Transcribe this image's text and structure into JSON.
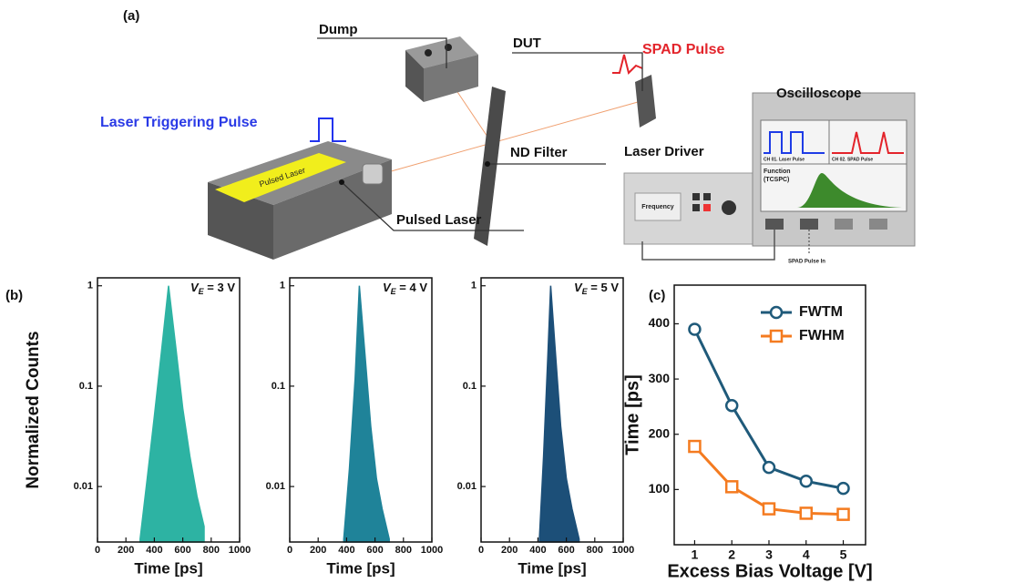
{
  "panels": {
    "a": "(a)",
    "b": "(b)",
    "c": "(c)"
  },
  "diagram": {
    "dump": "Dump",
    "dut": "DUT",
    "spad_pulse": "SPAD Pulse",
    "oscilloscope": "Oscilloscope",
    "laser_triggering_pulse": "Laser Triggering Pulse",
    "laser_box_label": "Pulsed Laser",
    "nd_filter": "ND Filter",
    "laser_driver": "Laser Driver",
    "pulsed_laser": "Pulsed Laser",
    "frequency": "Frequency",
    "ch1": "CH 01. Laser Pulse",
    "ch2": "CH 02. SPAD Pulse",
    "function": "Function",
    "tcspc": "(TCSPC)",
    "spad_pulse_in": "SPAD Pulse In"
  },
  "chart_data": [
    {
      "type": "line",
      "area": true,
      "log_y": true,
      "ylabel": "Normalized Counts",
      "xlabel": "Time [ps]",
      "annotation": [
        "V",
        "E",
        " = 3 V"
      ],
      "xlim": [
        0,
        1000
      ],
      "xticks": [
        0,
        200,
        400,
        600,
        800,
        1000
      ],
      "ylim": [
        0.0028,
        1.2
      ],
      "yticks": [
        1,
        0.1,
        0.01
      ],
      "series": [
        {
          "color": "#2db3a3",
          "x": [
            300,
            350,
            400,
            450,
            500,
            550,
            600,
            650,
            700,
            750
          ],
          "values": [
            0.003,
            0.012,
            0.05,
            0.22,
            1,
            0.25,
            0.06,
            0.02,
            0.008,
            0.004
          ]
        }
      ]
    },
    {
      "type": "line",
      "area": true,
      "log_y": true,
      "xlabel": "Time [ps]",
      "annotation": [
        "V",
        "E",
        " = 4 V"
      ],
      "xlim": [
        0,
        1000
      ],
      "xticks": [
        0,
        200,
        400,
        600,
        800,
        1000
      ],
      "ylim": [
        0.0028,
        1.2
      ],
      "yticks": [
        1,
        0.1,
        0.01
      ],
      "series": [
        {
          "color": "#1f8399",
          "x": [
            380,
            420,
            460,
            490,
            530,
            570,
            610,
            650,
            700
          ],
          "values": [
            0.003,
            0.015,
            0.12,
            1,
            0.2,
            0.04,
            0.012,
            0.006,
            0.003
          ]
        }
      ]
    },
    {
      "type": "line",
      "area": true,
      "log_y": true,
      "xlabel": "Time [ps]",
      "annotation": [
        "V",
        "E",
        " = 5 V"
      ],
      "xlim": [
        0,
        1000
      ],
      "xticks": [
        0,
        200,
        400,
        600,
        800,
        1000
      ],
      "ylim": [
        0.0028,
        1.2
      ],
      "yticks": [
        1,
        0.1,
        0.01
      ],
      "series": [
        {
          "color": "#1c4f78",
          "x": [
            410,
            440,
            470,
            490,
            520,
            560,
            600,
            640,
            690
          ],
          "values": [
            0.003,
            0.02,
            0.2,
            1,
            0.25,
            0.04,
            0.012,
            0.006,
            0.003
          ]
        }
      ]
    },
    {
      "type": "line",
      "xlabel": "Excess Bias Voltage [V]",
      "ylabel": "Time [ps]",
      "xlim": [
        0.45,
        5.6
      ],
      "xticks": [
        1,
        2,
        3,
        4,
        5
      ],
      "ylim": [
        0,
        470
      ],
      "yticks": [
        100,
        200,
        300,
        400
      ],
      "legend": "upper right",
      "series": [
        {
          "name": "FWTM",
          "color": "#1f5a7a",
          "marker": "circle",
          "x": [
            1,
            2,
            3,
            4,
            5
          ],
          "values": [
            390,
            252,
            140,
            115,
            102
          ]
        },
        {
          "name": "FWHM",
          "color": "#f47b20",
          "marker": "square",
          "x": [
            1,
            2,
            3,
            4,
            5
          ],
          "values": [
            178,
            105,
            65,
            57,
            55
          ]
        }
      ]
    }
  ]
}
